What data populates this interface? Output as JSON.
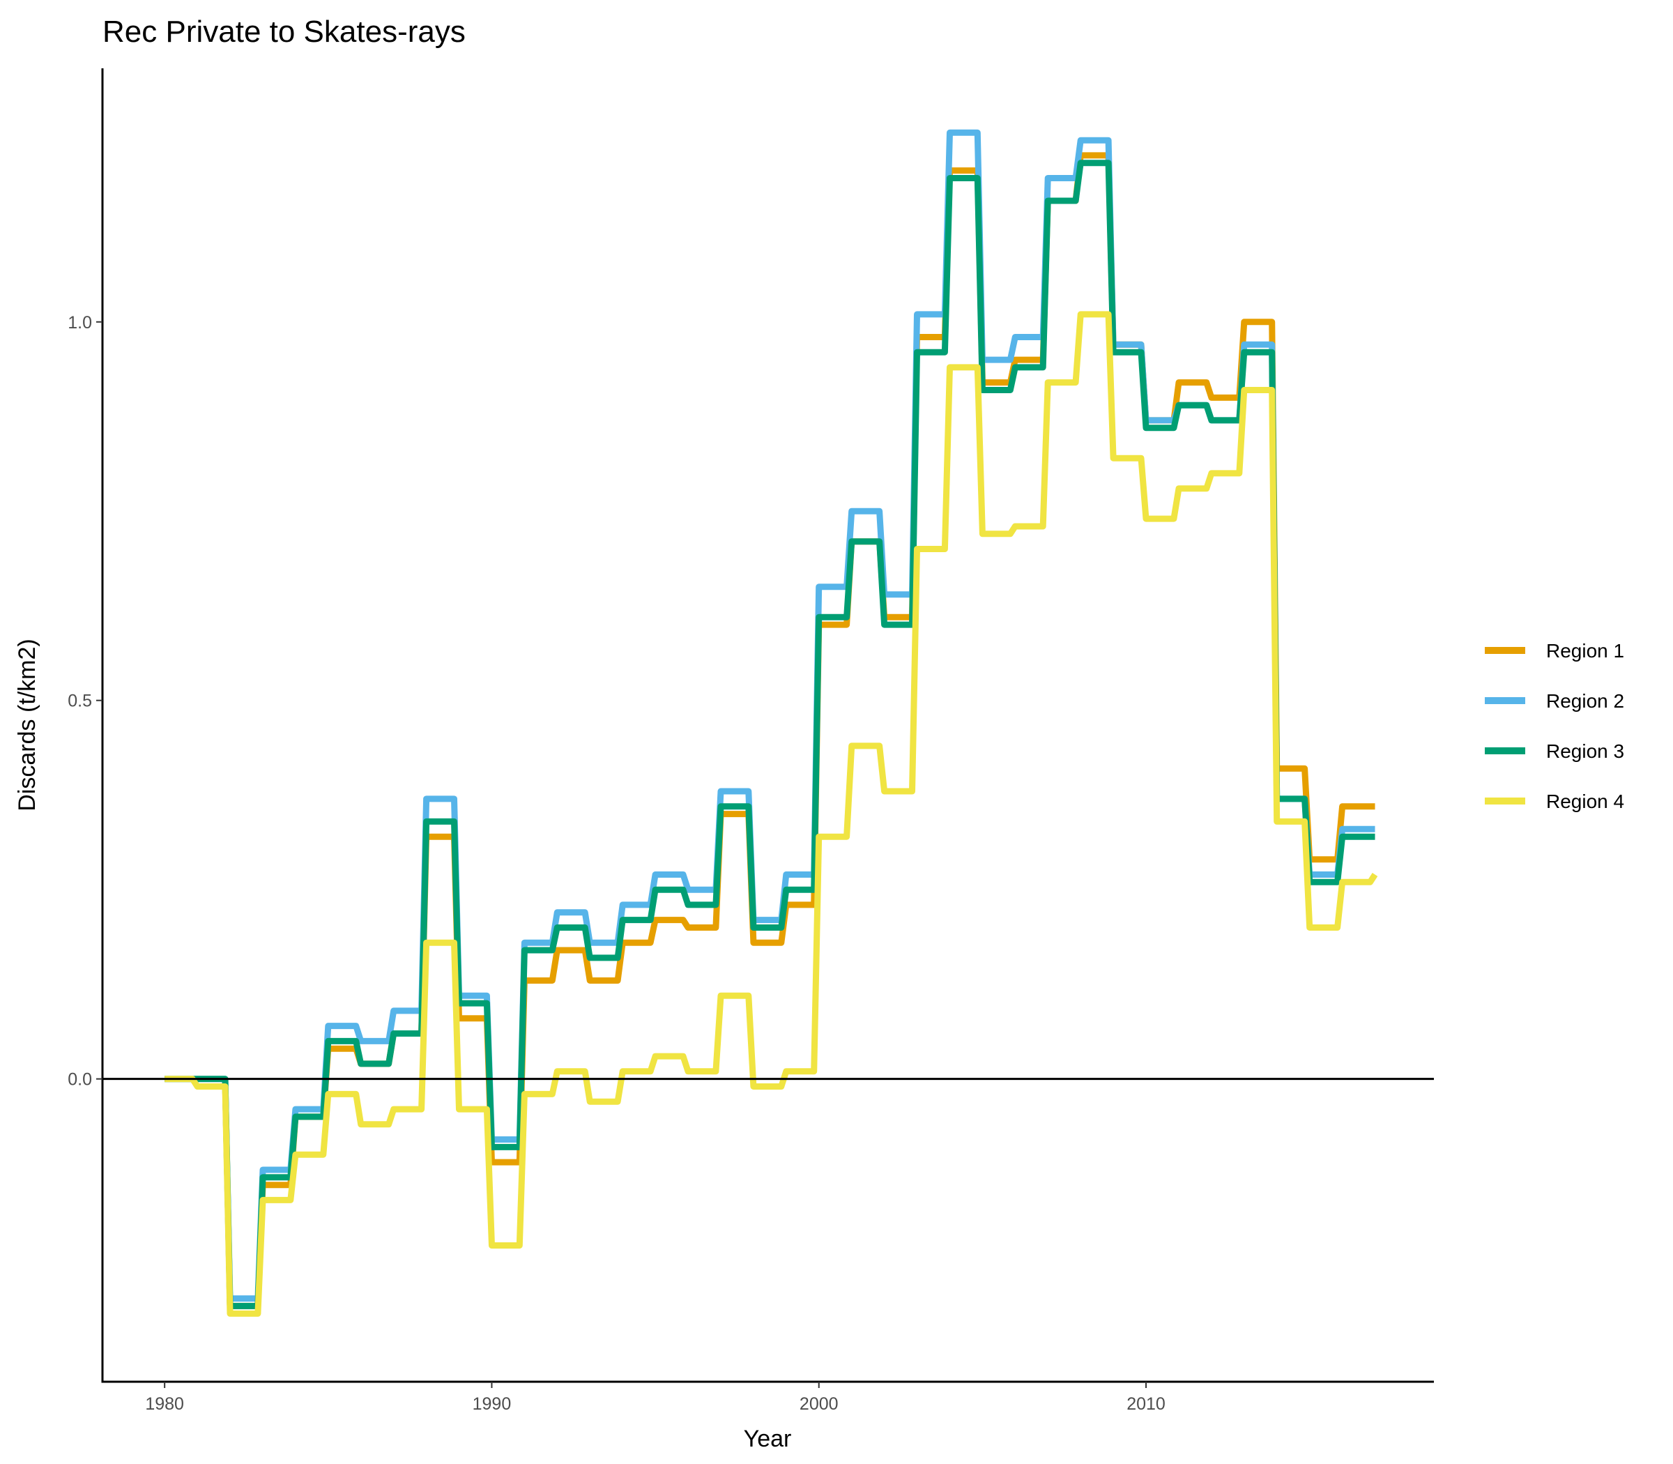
{
  "chart_data": {
    "type": "line",
    "title": "Rec Private to Skates-rays",
    "xlabel": "Year",
    "ylabel": "Discards (t/km2)",
    "xlim": [
      1978.1,
      2018.8
    ],
    "ylim": [
      -0.4,
      1.335
    ],
    "x_ticks": [
      1980,
      1990,
      2000,
      2010
    ],
    "x_tick_labels": [
      "1980",
      "1990",
      "2000",
      "2010"
    ],
    "y_ticks": [
      0.0,
      0.5,
      1.0
    ],
    "y_tick_labels": [
      "0.0",
      "0.5",
      "1.0"
    ],
    "zero_line": true,
    "grid": false,
    "legend_position": "right",
    "x": [
      1980,
      1981,
      1982,
      1983,
      1984,
      1985,
      1986,
      1987,
      1988,
      1989,
      1990,
      1991,
      1992,
      1993,
      1994,
      1995,
      1996,
      1997,
      1998,
      1999,
      2000,
      2001,
      2002,
      2003,
      2004,
      2005,
      2006,
      2007,
      2008,
      2009,
      2010,
      2011,
      2012,
      2013,
      2014,
      2015,
      2016,
      2017
    ],
    "series": [
      {
        "name": "Region 1",
        "color": "#E69F00",
        "values": [
          0.0,
          0.0,
          -0.3,
          -0.14,
          -0.05,
          0.04,
          0.02,
          0.06,
          0.32,
          0.08,
          -0.11,
          0.13,
          0.17,
          0.13,
          0.18,
          0.21,
          0.2,
          0.35,
          0.18,
          0.23,
          0.6,
          0.71,
          0.61,
          0.98,
          1.2,
          0.92,
          0.95,
          1.16,
          1.22,
          0.97,
          0.87,
          0.92,
          0.9,
          1.0,
          0.41,
          0.29,
          0.36,
          0.36
        ]
      },
      {
        "name": "Region 2",
        "color": "#56B4E9",
        "values": [
          0.0,
          0.0,
          -0.29,
          -0.12,
          -0.04,
          0.07,
          0.05,
          0.09,
          0.37,
          0.11,
          -0.08,
          0.18,
          0.22,
          0.18,
          0.23,
          0.27,
          0.25,
          0.38,
          0.21,
          0.27,
          0.65,
          0.75,
          0.64,
          1.01,
          1.25,
          0.95,
          0.98,
          1.19,
          1.24,
          0.97,
          0.87,
          0.89,
          0.87,
          0.97,
          0.37,
          0.27,
          0.33,
          0.33
        ]
      },
      {
        "name": "Region 3",
        "color": "#009E73",
        "values": [
          0.0,
          0.0,
          -0.3,
          -0.13,
          -0.05,
          0.05,
          0.02,
          0.06,
          0.34,
          0.1,
          -0.09,
          0.17,
          0.2,
          0.16,
          0.21,
          0.25,
          0.23,
          0.36,
          0.2,
          0.25,
          0.61,
          0.71,
          0.6,
          0.96,
          1.19,
          0.91,
          0.94,
          1.16,
          1.21,
          0.96,
          0.86,
          0.89,
          0.87,
          0.96,
          0.37,
          0.26,
          0.32,
          0.32
        ]
      },
      {
        "name": "Region 4",
        "color": "#F0E442",
        "values": [
          0.0,
          -0.01,
          -0.31,
          -0.16,
          -0.1,
          -0.02,
          -0.06,
          -0.04,
          0.18,
          -0.04,
          -0.22,
          -0.02,
          0.01,
          -0.03,
          0.01,
          0.03,
          0.01,
          0.11,
          -0.01,
          0.01,
          0.32,
          0.44,
          0.38,
          0.7,
          0.94,
          0.72,
          0.73,
          0.92,
          1.01,
          0.82,
          0.74,
          0.78,
          0.8,
          0.91,
          0.34,
          0.2,
          0.26,
          0.27
        ]
      }
    ]
  }
}
